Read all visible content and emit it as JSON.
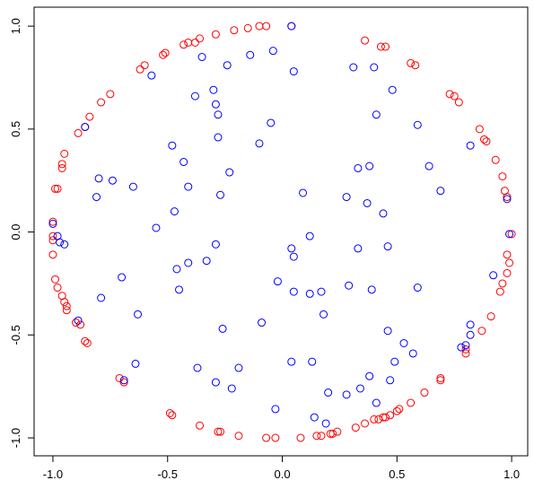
{
  "chart_data": {
    "type": "scatter",
    "xlim": [
      -1.082,
      1.07
    ],
    "ylim": [
      -1.087,
      1.092
    ],
    "xticks": [
      {
        "value": -1,
        "label": "-1.0"
      },
      {
        "value": -0.5,
        "label": "-0.5"
      },
      {
        "value": 0,
        "label": "0.0"
      },
      {
        "value": 0.5,
        "label": "0.5"
      },
      {
        "value": 1,
        "label": "1.0"
      }
    ],
    "yticks": [
      {
        "value": -1,
        "label": "-1.0"
      },
      {
        "value": -0.5,
        "label": "-0.5"
      },
      {
        "value": 0,
        "label": "0.0"
      },
      {
        "value": 0.5,
        "label": "0.5"
      },
      {
        "value": 1,
        "label": "1.0"
      }
    ],
    "series": [
      {
        "color": "#ff0000",
        "x": [
          0.04,
          -0.1,
          -0.07,
          -0.15,
          -0.21,
          -0.29,
          -0.36,
          -0.38,
          -0.41,
          -0.43,
          -0.51,
          -0.52,
          -0.6,
          -0.62,
          -0.75,
          -0.79,
          -0.84,
          -0.86,
          -0.89,
          -0.95,
          -0.96,
          -0.96,
          -0.98,
          -0.99,
          -1.0,
          -1.0,
          -1.0,
          -1.0,
          -0.99,
          -0.98,
          -0.96,
          -0.95,
          -0.94,
          -0.94,
          -0.9,
          -0.88,
          -0.86,
          -0.85,
          -0.71,
          -0.69,
          -0.49,
          -0.48,
          -0.36,
          -0.28,
          -0.27,
          -0.19,
          -0.07,
          -0.03,
          0.08,
          0.15,
          0.17,
          0.21,
          0.22,
          0.24,
          0.32,
          0.36,
          0.4,
          0.42,
          0.44,
          0.45,
          0.47,
          0.5,
          0.51,
          0.56,
          0.62,
          0.69,
          0.69,
          0.8,
          0.8,
          0.87,
          0.91,
          0.95,
          0.96,
          0.98,
          0.99,
          0.98,
          1.0,
          0.98,
          0.97,
          0.96,
          0.93,
          0.89,
          0.88,
          0.86,
          0.77,
          0.75,
          0.73,
          0.58,
          0.56,
          0.45,
          0.43,
          0.36
        ],
        "y": [
          1.0,
          1.0,
          1.0,
          0.99,
          0.98,
          0.96,
          0.94,
          0.92,
          0.92,
          0.91,
          0.87,
          0.86,
          0.81,
          0.79,
          0.67,
          0.63,
          0.56,
          0.51,
          0.48,
          0.38,
          0.33,
          0.31,
          0.21,
          0.21,
          0.05,
          -0.02,
          -0.04,
          -0.11,
          -0.23,
          -0.27,
          -0.31,
          -0.34,
          -0.36,
          -0.38,
          -0.44,
          -0.45,
          -0.53,
          -0.54,
          -0.71,
          -0.73,
          -0.88,
          -0.89,
          -0.94,
          -0.97,
          -0.97,
          -0.99,
          -1.0,
          -1.0,
          -1.0,
          -0.99,
          -0.99,
          -0.98,
          -0.98,
          -0.97,
          -0.95,
          -0.93,
          -0.91,
          -0.91,
          -0.9,
          -0.9,
          -0.89,
          -0.87,
          -0.86,
          -0.83,
          -0.78,
          -0.72,
          -0.71,
          -0.59,
          -0.57,
          -0.48,
          -0.41,
          -0.29,
          -0.25,
          -0.2,
          -0.15,
          -0.11,
          -0.01,
          0.17,
          0.2,
          0.27,
          0.35,
          0.44,
          0.45,
          0.5,
          0.63,
          0.66,
          0.67,
          0.81,
          0.82,
          0.9,
          0.9,
          0.93
        ]
      },
      {
        "color": "#0000ff",
        "x": [
          0.04,
          -0.04,
          -0.14,
          -0.24,
          -0.35,
          -0.57,
          0.05,
          0.31,
          0.4,
          0.48,
          0.41,
          0.59,
          0.82,
          0.64,
          0.69,
          -0.38,
          -0.3,
          -0.29,
          -0.28,
          -0.28,
          -0.05,
          -0.1,
          -0.48,
          -0.43,
          -0.23,
          -0.27,
          -0.41,
          -0.8,
          -0.74,
          -0.65,
          -0.81,
          -0.47,
          -0.55,
          0.09,
          0.28,
          0.33,
          0.38,
          0.37,
          0.44,
          0.12,
          0.04,
          0.05,
          0.33,
          0.46,
          -0.29,
          -0.46,
          -0.33,
          -0.41,
          -0.45,
          -0.02,
          0.05,
          0.12,
          0.17,
          0.29,
          0.39,
          0.59,
          -0.95,
          -0.97,
          -0.98,
          -1.0,
          -0.7,
          -0.79,
          -0.89,
          -0.63,
          -0.26,
          -0.09,
          0.18,
          0.46,
          0.53,
          0.57,
          0.49,
          0.82,
          0.8,
          0.78,
          0.82,
          0.92,
          0.98,
          0.99,
          -0.37,
          -0.19,
          -0.64,
          -0.69,
          -0.29,
          -0.22,
          0.04,
          0.13,
          0.2,
          0.34,
          0.38,
          0.41,
          0.47,
          0.28,
          -0.03,
          0.14,
          0.19,
          -0.86
        ],
        "y": [
          1.0,
          0.88,
          0.86,
          0.81,
          0.85,
          0.76,
          0.78,
          0.8,
          0.8,
          0.69,
          0.57,
          0.52,
          0.42,
          0.32,
          0.2,
          0.66,
          0.69,
          0.62,
          0.57,
          0.46,
          0.53,
          0.43,
          0.42,
          0.34,
          0.29,
          0.18,
          0.22,
          0.26,
          0.25,
          0.22,
          0.17,
          0.1,
          0.02,
          0.19,
          0.17,
          0.31,
          0.32,
          0.14,
          0.09,
          -0.02,
          -0.08,
          -0.12,
          -0.08,
          -0.07,
          -0.06,
          -0.18,
          -0.14,
          -0.15,
          -0.28,
          -0.24,
          -0.29,
          -0.3,
          -0.29,
          -0.26,
          -0.28,
          -0.27,
          -0.06,
          -0.05,
          -0.02,
          0.04,
          -0.22,
          -0.32,
          -0.43,
          -0.4,
          -0.47,
          -0.44,
          -0.4,
          -0.48,
          -0.54,
          -0.59,
          -0.63,
          -0.5,
          -0.55,
          -0.56,
          -0.45,
          -0.21,
          0.16,
          -0.01,
          -0.66,
          -0.66,
          -0.64,
          -0.72,
          -0.73,
          -0.76,
          -0.63,
          -0.63,
          -0.78,
          -0.76,
          -0.7,
          -0.83,
          -0.72,
          -0.79,
          -0.86,
          -0.9,
          -0.93,
          0.51
        ]
      }
    ]
  }
}
